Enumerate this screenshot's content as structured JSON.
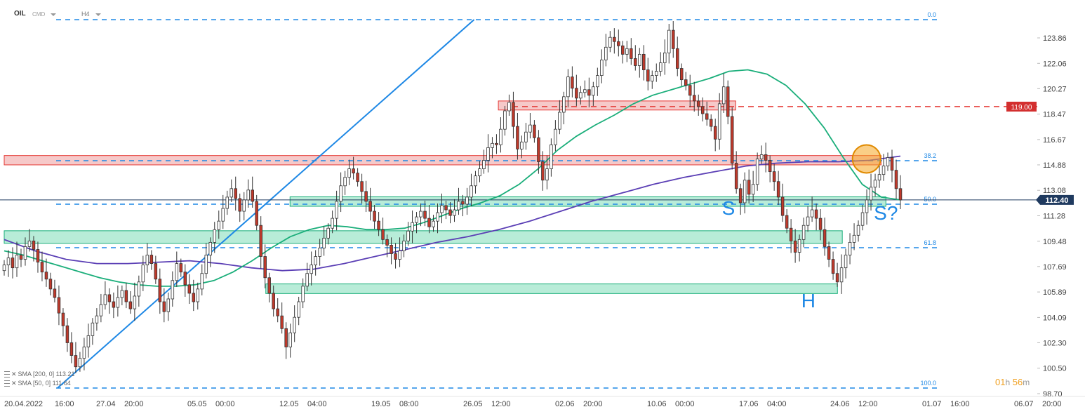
{
  "header": {
    "symbol": "OIL",
    "type": "CMD",
    "timeframe": "H4"
  },
  "legend": [
    {
      "label": "SMA [200, 0]",
      "value": "113.21"
    },
    {
      "label": "SMA [50, 0]",
      "value": "111.64"
    }
  ],
  "countdown": {
    "hours": "01",
    "h": "h",
    "minutes": "56",
    "m": "m"
  },
  "colors": {
    "bull": "#ffffff",
    "bear": "#c0392b",
    "wick": "#333333",
    "sma50": "#1aae7a",
    "sma200": "#5b3fb5",
    "trend": "#1e88e5",
    "fib": "#1e88e5",
    "resistance": "#e53935",
    "support_fill": "#b8ecd8",
    "resistance_fill": "#f6c9c9",
    "marker": "#f5a623"
  },
  "chart_data": {
    "type": "candlestick",
    "timeframe": "H4",
    "ylim": [
      98.7,
      124.9
    ],
    "y_ticks": [
      "123.86",
      "122.06",
      "120.27",
      "118.47",
      "116.67",
      "114.88",
      "113.08",
      "111.28",
      "109.48",
      "107.69",
      "105.89",
      "104.09",
      "102.30",
      "100.50",
      "98.70"
    ],
    "x_ticks": [
      "20.04.2022",
      "16:00",
      "27.04",
      "20:00",
      "05.05",
      "00:00",
      "12.05",
      "04:00",
      "19.05",
      "08:00",
      "26.05",
      "12:00",
      "02.06",
      "20:00",
      "10.06",
      "00:00",
      "17.06",
      "04:00",
      "24.06",
      "12:00",
      "01.07",
      "16:00",
      "06.07",
      "20:00"
    ],
    "x_tick_groups": [
      {
        "date": "20.04.2022",
        "time": "16:00"
      },
      {
        "date": "27.04",
        "time": "20:00"
      },
      {
        "date": "05.05",
        "time": "00:00"
      },
      {
        "date": "12.05",
        "time": "04:00"
      },
      {
        "date": "19.05",
        "time": "08:00"
      },
      {
        "date": "26.05",
        "time": "12:00"
      },
      {
        "date": "02.06",
        "time": "20:00"
      },
      {
        "date": "10.06",
        "time": "00:00"
      },
      {
        "date": "17.06",
        "time": "04:00"
      },
      {
        "date": "24.06",
        "time": "12:00"
      },
      {
        "date": "01.07",
        "time": "16:00"
      },
      {
        "date": "06.07",
        "time": "20:00"
      }
    ],
    "x_range": [
      0,
      185
    ],
    "close": [
      107.8,
      108.3,
      107.6,
      108.5,
      108.2,
      109.1,
      109.5,
      108.9,
      108.0,
      107.3,
      106.8,
      106.1,
      105.5,
      104.4,
      103.5,
      102.3,
      101.4,
      100.6,
      101.2,
      102.0,
      102.8,
      103.7,
      104.2,
      105.0,
      105.7,
      105.2,
      104.8,
      105.5,
      106.0,
      105.2,
      104.7,
      105.6,
      106.6,
      107.8,
      108.5,
      107.9,
      106.8,
      105.2,
      104.5,
      105.4,
      106.7,
      107.9,
      107.3,
      106.4,
      105.8,
      105.2,
      106.1,
      107.2,
      108.5,
      109.4,
      110.3,
      110.9,
      111.8,
      112.6,
      113.2,
      112.5,
      111.6,
      112.4,
      113.1,
      112.3,
      110.6,
      108.4,
      106.9,
      105.8,
      104.7,
      104.2,
      103.3,
      102.0,
      103.0,
      104.1,
      105.2,
      106.3,
      107.2,
      107.8,
      108.4,
      109.0,
      109.7,
      110.4,
      111.1,
      112.3,
      113.4,
      114.0,
      114.6,
      114.3,
      113.7,
      113.0,
      112.3,
      111.6,
      110.9,
      110.3,
      109.6,
      109.2,
      108.6,
      108.2,
      108.8,
      109.5,
      110.2,
      110.8,
      111.2,
      111.6,
      111.1,
      110.5,
      110.9,
      111.5,
      112.0,
      111.7,
      111.3,
      111.7,
      112.3,
      112.1,
      112.6,
      113.4,
      114.1,
      114.6,
      115.2,
      116.1,
      116.4,
      116.3,
      117.4,
      118.7,
      119.3,
      117.6,
      116.0,
      116.5,
      117.2,
      117.7,
      116.8,
      115.1,
      113.8,
      114.6,
      116.3,
      117.4,
      118.6,
      119.7,
      121.1,
      120.3,
      119.6,
      120.0,
      120.2,
      119.8,
      120.4,
      121.2,
      122.3,
      123.2,
      123.9,
      123.6,
      123.3,
      122.7,
      123.1,
      122.4,
      121.9,
      122.7,
      121.6,
      120.8,
      121.2,
      121.5,
      122.1,
      122.8,
      124.4,
      123.1,
      121.7,
      120.9,
      120.5,
      119.8,
      119.4,
      119.0,
      118.5,
      118.1,
      117.6,
      116.7,
      119.2,
      120.4,
      118.3,
      115.0,
      113.2,
      112.2,
      113.8,
      112.8,
      113.5,
      115.3,
      115.6,
      115.2,
      114.4,
      113.7,
      112.6,
      111.3,
      110.4,
      109.5,
      108.7,
      109.6,
      110.6,
      111.2,
      111.7,
      111.1,
      110.3,
      109.1,
      108.2,
      107.2,
      106.6,
      107.6,
      108.5,
      109.4,
      109.9,
      110.6,
      111.5,
      112.4,
      113.3,
      113.8,
      114.2,
      114.8,
      115.4,
      114.5,
      113.2,
      112.4
    ],
    "series": [
      {
        "name": "SMA [200, 0]",
        "value": 113.21
      },
      {
        "name": "SMA [50, 0]",
        "value": 111.64
      }
    ],
    "sma50": [
      108.8,
      108.5,
      108.1,
      107.7,
      107.3,
      106.9,
      106.6,
      106.4,
      106.3,
      106.3,
      106.4,
      106.7,
      107.3,
      108.1,
      109.0,
      109.8,
      110.3,
      110.6,
      110.5,
      110.3,
      110.3,
      110.4,
      110.8,
      111.3,
      111.8,
      112.2,
      112.7,
      113.5,
      114.6,
      115.9,
      116.9,
      117.7,
      118.4,
      119.2,
      119.8,
      120.2,
      120.6,
      121.0,
      121.5,
      121.6,
      121.3,
      120.5,
      119.2,
      117.5,
      115.4,
      113.5,
      112.6,
      112.4
    ],
    "sma200": [
      109.6,
      108.8,
      108.2,
      107.9,
      107.9,
      108.0,
      108.1,
      107.9,
      107.6,
      107.4,
      107.5,
      107.9,
      108.4,
      108.9,
      109.4,
      109.8,
      110.3,
      110.9,
      111.6,
      112.3,
      112.9,
      113.5,
      114.0,
      114.4,
      114.8,
      115.0,
      115.1,
      115.1,
      115.2,
      115.5
    ],
    "resistance_line": 119.0,
    "resistance_label": "119.00",
    "current_price": 112.4,
    "current_price_label": "112.40",
    "fib_levels": [
      {
        "label": "0.0",
        "price": 124.9
      },
      {
        "label": "38.2",
        "price": 114.98
      },
      {
        "label": "50.0",
        "price": 112.2
      },
      {
        "label": "61.8",
        "price": 109.08
      },
      {
        "label": "100.0",
        "price": 99.2
      }
    ],
    "zones": [
      {
        "kind": "resistance",
        "from": 114.88,
        "to": 115.54,
        "x_start": 0,
        "x_end": 181
      },
      {
        "kind": "resistance",
        "from": 118.76,
        "to": 119.4,
        "x_start": 102,
        "x_end": 151
      },
      {
        "kind": "support",
        "from": 111.95,
        "to": 112.62,
        "x_start": 59,
        "x_end": 182
      },
      {
        "kind": "support",
        "from": 109.33,
        "to": 110.22,
        "x_start": 0,
        "x_end": 173
      },
      {
        "kind": "support",
        "from": 105.78,
        "to": 106.46,
        "x_start": 54,
        "x_end": 172
      }
    ],
    "trendline": {
      "from": [
        11,
        99.2
      ],
      "to": [
        97,
        124.9
      ]
    },
    "annotations": [
      {
        "text": "S",
        "x": 149.5,
        "y": 111.35
      },
      {
        "text": "H",
        "x": 166,
        "y": 104.8
      },
      {
        "text": "S?",
        "x": 182,
        "y": 111.0
      }
    ],
    "highlight": {
      "x": 178,
      "y": 115.3
    }
  }
}
